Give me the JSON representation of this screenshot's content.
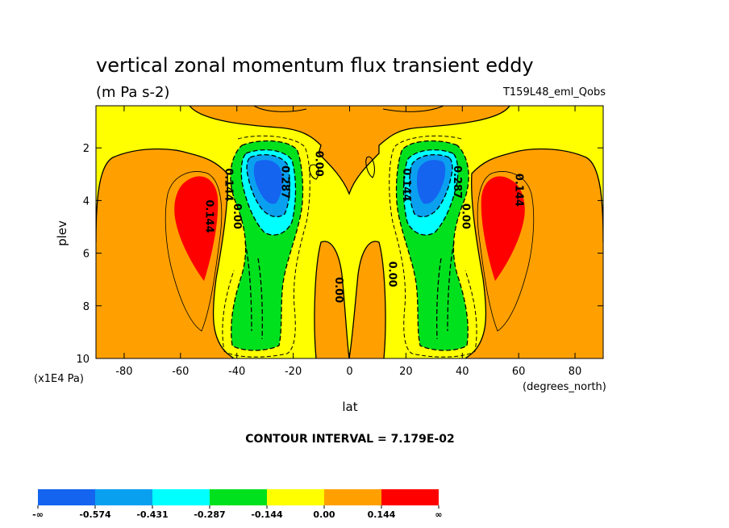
{
  "chart_data": {
    "type": "contour",
    "title": "vertical zonal momentum flux transient eddy",
    "units": "(m Pa s-2)",
    "dataset": "T159L48_eml_Qobs",
    "xlabel": "lat",
    "ylabel": "plev",
    "x_units": "(degrees_north)",
    "y_units": "(x1E4 Pa)",
    "xlim": [
      -90,
      90
    ],
    "ylim": [
      10,
      0.4
    ],
    "x_ticks": [
      -80,
      -60,
      -40,
      -20,
      0,
      20,
      40,
      60,
      80
    ],
    "x_tick_labels": [
      "-80",
      "-60",
      "-40",
      "-20",
      "0",
      "20",
      "40",
      "60",
      "80"
    ],
    "y_ticks": [
      2,
      4,
      6,
      8,
      10
    ],
    "y_tick_labels": [
      "2",
      "4",
      "6",
      "8",
      "10"
    ],
    "contour_interval": "CONTOUR INTERVAL = 7.179E-02",
    "contour_labels": [
      {
        "text": "0.144",
        "lat": -44,
        "plev": 3.4
      },
      {
        "text": "0.287",
        "lat": -24,
        "plev": 3.3
      },
      {
        "text": "0.00",
        "lat": -12,
        "plev": 2.6
      },
      {
        "text": "0.144",
        "lat": -51,
        "plev": 4.6
      },
      {
        "text": "0.00",
        "lat": -41,
        "plev": 4.6
      },
      {
        "text": "0.00",
        "lat": -5,
        "plev": 7.4
      },
      {
        "text": "0.00",
        "lat": 14,
        "plev": 6.8
      },
      {
        "text": "0.144",
        "lat": 19,
        "plev": 3.4
      },
      {
        "text": "0.287",
        "lat": 37,
        "plev": 3.3
      },
      {
        "text": "0.00",
        "lat": 40,
        "plev": 4.6
      },
      {
        "text": "0.144",
        "lat": 59,
        "plev": 3.6
      }
    ],
    "colorbar": {
      "levels": [
        "-∞",
        "-0.574",
        "-0.431",
        "-0.287",
        "-0.144",
        "0.00",
        "0.144",
        "∞"
      ],
      "colors": [
        "#1464f0",
        "#0aa0f0",
        "#00ffff",
        "#00e11e",
        "#ffff00",
        "#ffa000",
        "#ff0000"
      ]
    }
  }
}
